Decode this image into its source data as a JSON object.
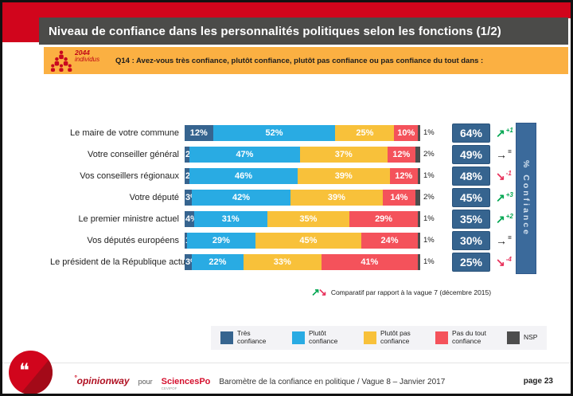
{
  "colors": {
    "brand_red": "#d1051c",
    "title_bar": "#4b4b49",
    "question_band": "#fbb042",
    "total_box": "#36648f",
    "confidence_bar": "#3b6a9b",
    "legend_bg": "#f3f3f6"
  },
  "header": {
    "title": "Niveau de confiance dans les personnalités politiques selon les fonctions (1/2)",
    "sample_count": "2044",
    "sample_unit": "individus",
    "question": "Q14 : Avez-vous très confiance, plutôt confiance, plutôt pas confiance ou pas confiance du tout dans :"
  },
  "chart_data": {
    "type": "bar",
    "orientation": "horizontal",
    "stacked": true,
    "xlim": [
      0,
      100
    ],
    "categories": [
      "Le maire de votre commune",
      "Votre conseiller général",
      "Vos conseillers régionaux",
      "Votre député",
      "Le premier ministre actuel",
      "Vos députés européens",
      "Le président de la République actuel"
    ],
    "series": [
      {
        "name": "Très confiance",
        "color": "#36648f",
        "values": [
          12,
          2,
          2,
          3,
          4,
          1,
          3
        ]
      },
      {
        "name": "Plutôt confiance",
        "color": "#29abe3",
        "values": [
          52,
          47,
          46,
          42,
          31,
          29,
          22
        ]
      },
      {
        "name": "Plutôt pas confiance",
        "color": "#f8c13a",
        "values": [
          25,
          37,
          39,
          39,
          35,
          45,
          33
        ]
      },
      {
        "name": "Pas du tout confiance",
        "color": "#f4525b",
        "values": [
          10,
          12,
          12,
          14,
          29,
          24,
          41
        ]
      },
      {
        "name": "NSP",
        "color": "#4d4d4d",
        "values": [
          1,
          2,
          1,
          2,
          1,
          1,
          1
        ]
      }
    ],
    "totals": {
      "label": "% Confiance",
      "values": [
        64,
        49,
        48,
        45,
        35,
        30,
        25
      ]
    },
    "trends": [
      {
        "dir": "up",
        "label": "+1"
      },
      {
        "dir": "flat",
        "label": "="
      },
      {
        "dir": "down",
        "label": "-1"
      },
      {
        "dir": "up",
        "label": "+3"
      },
      {
        "dir": "up",
        "label": "+2"
      },
      {
        "dir": "flat",
        "label": "="
      },
      {
        "dir": "down",
        "label": "-4"
      }
    ],
    "trend_colors": {
      "up": "#00a651",
      "flat": "#1a1a1a",
      "down": "#e8315b"
    },
    "trend_arrows": {
      "up": "↗",
      "flat": "→",
      "down": "↘"
    },
    "note": "Comparatif par rapport à la vague 7 (décembre 2015)",
    "legend_position": "bottom"
  },
  "footer": {
    "brand_prefix": "°",
    "brand": "opinionway",
    "pour": "pour",
    "partner": "SciencesPo",
    "partner_sub": "CEVIPOF",
    "caption": "Baromètre de la confiance en politique / Vague 8 – Janvier 2017",
    "page": "page 23"
  }
}
